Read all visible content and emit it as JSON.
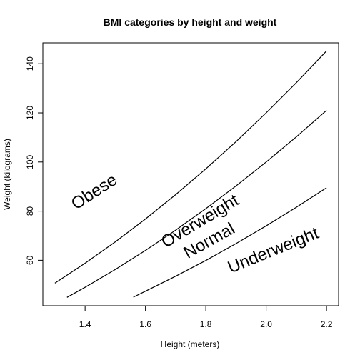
{
  "chart_data": {
    "type": "line",
    "title": "BMI categories by height and weight",
    "xlabel": "Height (meters)",
    "ylabel": "Weight (kilograms)",
    "xlim": [
      1.26,
      2.24
    ],
    "ylim": [
      41.5,
      148.5
    ],
    "x_ticks": [
      1.4,
      1.6,
      1.8,
      2.0,
      2.2
    ],
    "x_tick_labels": [
      "1.4",
      "1.6",
      "1.8",
      "2.0",
      "2.2"
    ],
    "y_ticks": [
      60,
      80,
      100,
      120,
      140
    ],
    "y_tick_labels": [
      "60",
      "80",
      "100",
      "120",
      "140"
    ],
    "grid": false,
    "series": [
      {
        "bmi": 30,
        "x": [
          1.3,
          1.4,
          1.5,
          1.6,
          1.7,
          1.8,
          1.9,
          2.0,
          2.1,
          2.2
        ],
        "values": [
          50.7,
          58.8,
          67.5,
          76.8,
          86.7,
          97.2,
          108.3,
          120.0,
          132.3,
          145.2
        ]
      },
      {
        "bmi": 25,
        "x": [
          1.34,
          1.4,
          1.5,
          1.6,
          1.7,
          1.8,
          1.9,
          2.0,
          2.1,
          2.2
        ],
        "values": [
          44.9,
          49.0,
          56.25,
          64.0,
          72.25,
          81.0,
          90.25,
          100.0,
          110.25,
          121.0
        ]
      },
      {
        "bmi": 18.5,
        "x": [
          1.56,
          1.6,
          1.7,
          1.8,
          1.9,
          2.0,
          2.1,
          2.2
        ],
        "values": [
          45.0,
          47.4,
          53.5,
          59.9,
          66.8,
          74.0,
          81.6,
          89.5
        ]
      }
    ],
    "annotations": [
      {
        "text": "Obese",
        "x": 1.44,
        "y": 86,
        "rotation": -33
      },
      {
        "text": "Overweight",
        "x": 1.79,
        "y": 74,
        "rotation": -31
      },
      {
        "text": "Normal",
        "x": 1.82,
        "y": 66,
        "rotation": -29
      },
      {
        "text": "Underweight",
        "x": 2.03,
        "y": 62,
        "rotation": -22
      }
    ]
  }
}
